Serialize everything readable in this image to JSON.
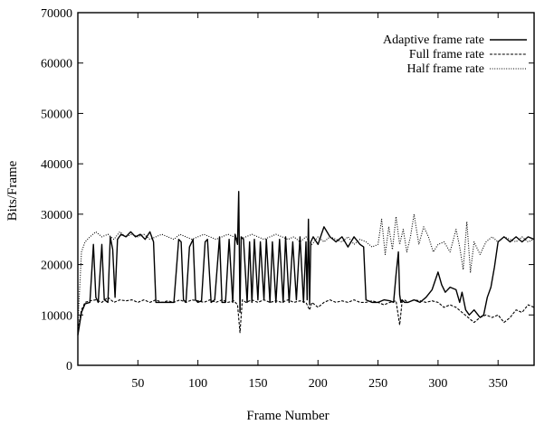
{
  "chart_data": {
    "type": "line",
    "title": "",
    "xlabel": "Frame Number",
    "ylabel": "Bits/Frame",
    "xlim": [
      0,
      380
    ],
    "ylim": [
      0,
      70000
    ],
    "x_ticks": [
      50,
      100,
      150,
      200,
      250,
      300,
      350
    ],
    "y_ticks": [
      0,
      10000,
      20000,
      30000,
      40000,
      50000,
      60000,
      70000
    ],
    "grid": false,
    "legend_position": "top-right",
    "series": [
      {
        "name": "Adaptive frame rate",
        "style": "solid",
        "x": [
          0,
          3,
          6,
          10,
          13,
          15,
          17,
          20,
          22,
          25,
          27,
          29,
          31,
          33,
          36,
          40,
          44,
          48,
          52,
          56,
          60,
          63,
          65,
          70,
          75,
          80,
          84,
          86,
          88,
          90,
          93,
          96,
          98,
          100,
          103,
          106,
          108,
          111,
          114,
          118,
          120,
          123,
          126,
          129,
          131,
          133,
          134,
          135,
          136,
          138,
          141,
          143,
          145,
          147,
          150,
          152,
          155,
          157,
          160,
          162,
          165,
          168,
          171,
          173,
          176,
          179,
          182,
          185,
          188,
          190,
          191,
          192,
          193,
          194,
          196,
          200,
          205,
          210,
          215,
          220,
          225,
          230,
          235,
          238,
          240,
          245,
          250,
          255,
          260,
          263,
          265,
          267,
          268,
          269,
          270,
          272,
          275,
          280,
          285,
          290,
          295,
          300,
          303,
          306,
          310,
          315,
          318,
          320,
          323,
          326,
          330,
          335,
          338,
          341,
          344,
          347,
          350,
          355,
          360,
          365,
          370,
          375,
          380
        ],
        "y": [
          6000,
          10500,
          12200,
          12500,
          24000,
          13500,
          12500,
          24000,
          13000,
          12500,
          25500,
          23000,
          13500,
          25000,
          26000,
          25500,
          26500,
          25500,
          26000,
          25000,
          26500,
          24500,
          12500,
          12500,
          12500,
          12500,
          25000,
          24500,
          13000,
          12500,
          23500,
          25000,
          13000,
          12500,
          12800,
          24500,
          25000,
          12500,
          13000,
          25500,
          12500,
          12500,
          25000,
          12500,
          26000,
          24000,
          34500,
          10500,
          25500,
          25000,
          12500,
          24500,
          12500,
          25000,
          13000,
          24500,
          13000,
          25000,
          12500,
          24500,
          12500,
          25000,
          12500,
          25500,
          12500,
          24500,
          13000,
          25500,
          12500,
          24500,
          13000,
          29000,
          12000,
          24500,
          25500,
          24000,
          27500,
          25500,
          24500,
          25500,
          23500,
          25500,
          24000,
          23500,
          13000,
          12500,
          12500,
          13000,
          12800,
          12500,
          18000,
          22500,
          14000,
          12500,
          13000,
          12500,
          12500,
          13000,
          12500,
          13500,
          15000,
          18500,
          16000,
          14500,
          15500,
          15000,
          12500,
          14500,
          11000,
          10000,
          11000,
          9500,
          10000,
          13500,
          15500,
          19500,
          24500,
          25500,
          24500,
          25500,
          24500,
          25500,
          25000
        ]
      },
      {
        "name": "Full frame rate",
        "style": "dashed",
        "x": [
          0,
          3,
          6,
          10,
          15,
          20,
          25,
          30,
          35,
          40,
          45,
          50,
          55,
          60,
          65,
          70,
          75,
          80,
          85,
          90,
          95,
          100,
          105,
          110,
          115,
          120,
          125,
          130,
          133,
          135,
          137,
          140,
          145,
          150,
          155,
          160,
          165,
          170,
          175,
          180,
          185,
          190,
          193,
          195,
          200,
          205,
          210,
          215,
          220,
          225,
          230,
          235,
          240,
          245,
          250,
          255,
          260,
          265,
          268,
          270,
          272,
          275,
          280,
          285,
          290,
          295,
          300,
          305,
          310,
          315,
          320,
          325,
          330,
          335,
          340,
          345,
          350,
          355,
          360,
          365,
          370,
          375,
          380
        ],
        "y": [
          7000,
          11000,
          12500,
          12800,
          13000,
          12500,
          13500,
          12500,
          13000,
          12800,
          13000,
          12500,
          13000,
          12500,
          13000,
          12500,
          12800,
          12500,
          13000,
          12500,
          13000,
          12800,
          12500,
          13000,
          12500,
          13000,
          12500,
          12800,
          12000,
          6500,
          13000,
          12500,
          13000,
          12500,
          13000,
          12500,
          12800,
          12500,
          13000,
          12500,
          12800,
          12500,
          11000,
          12500,
          11500,
          12500,
          13000,
          12500,
          12800,
          12500,
          13000,
          12500,
          12500,
          12800,
          12500,
          12000,
          12500,
          12800,
          8000,
          12500,
          13000,
          12500,
          13000,
          12800,
          12500,
          12800,
          12500,
          11500,
          12000,
          11500,
          10500,
          9500,
          8500,
          9500,
          10000,
          9500,
          10000,
          8500,
          9500,
          11000,
          10500,
          12000,
          11500
        ]
      },
      {
        "name": "Half frame rate",
        "style": "dotted",
        "x": [
          0,
          3,
          6,
          10,
          15,
          20,
          25,
          30,
          35,
          40,
          45,
          50,
          55,
          60,
          65,
          70,
          75,
          80,
          85,
          90,
          95,
          100,
          105,
          110,
          115,
          120,
          125,
          130,
          135,
          140,
          145,
          150,
          155,
          160,
          165,
          170,
          175,
          180,
          185,
          190,
          195,
          200,
          205,
          210,
          215,
          220,
          225,
          230,
          235,
          240,
          245,
          250,
          253,
          256,
          259,
          262,
          265,
          268,
          271,
          274,
          277,
          280,
          284,
          288,
          292,
          296,
          300,
          305,
          310,
          315,
          318,
          321,
          324,
          327,
          330,
          335,
          340,
          345,
          350,
          355,
          360,
          365,
          370,
          375,
          380
        ],
        "y": [
          8000,
          22500,
          24500,
          25500,
          26500,
          25500,
          26000,
          25000,
          26500,
          25500,
          26000,
          25500,
          26000,
          25000,
          25500,
          26000,
          25500,
          25000,
          26000,
          25500,
          25000,
          25500,
          26000,
          25500,
          25000,
          25500,
          26000,
          25500,
          25000,
          25500,
          26000,
          25500,
          25000,
          25500,
          26000,
          25500,
          25000,
          25500,
          24500,
          25500,
          24000,
          25500,
          24500,
          25500,
          25000,
          24500,
          25500,
          24000,
          25000,
          24500,
          23500,
          24000,
          29000,
          22000,
          27500,
          23000,
          29500,
          24000,
          27000,
          22500,
          25500,
          30000,
          24000,
          27500,
          25500,
          22500,
          24000,
          24500,
          22500,
          27000,
          23500,
          19000,
          28500,
          18500,
          24500,
          22000,
          24500,
          25500,
          24500,
          25500,
          25000,
          24500,
          25500,
          24500,
          25000
        ]
      }
    ]
  }
}
